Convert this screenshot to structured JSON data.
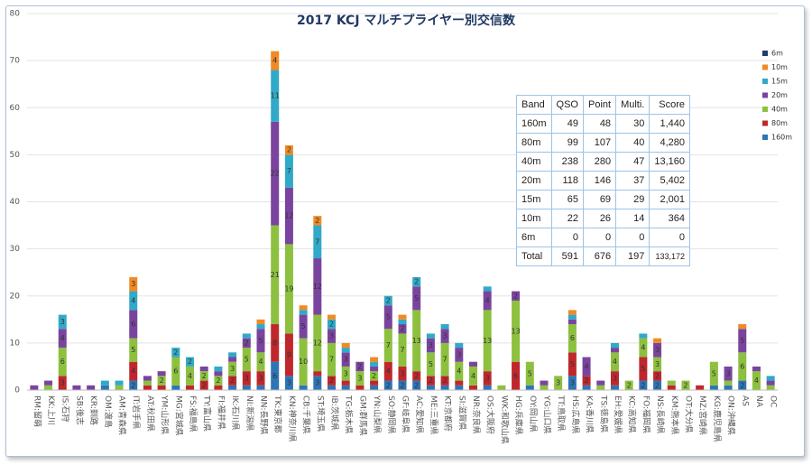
{
  "chart_data": {
    "type": "bar",
    "stacked": true,
    "title": "2017 KCJ マルチプライヤー別交信数",
    "categories": [
      "RM:留萌",
      "KK:上川",
      "IS:石狩",
      "SB:後志",
      "KR:釧路",
      "OM:渡島",
      "AM:青森県",
      "IT:岩手県",
      "AT:秋田県",
      "YM:山形県",
      "MG:宮城県",
      "FS:福島県",
      "TY:富山県",
      "FI:福井県",
      "IK:石川県",
      "NI:新潟県",
      "NN:長野県",
      "TK:東京都",
      "KN:神奈川県",
      "CB:千葉県",
      "ST:埼玉県",
      "IB:茨城県",
      "TG:栃木県",
      "GM:群馬県",
      "YN:山梨県",
      "SO:静岡県",
      "GF:岐阜県",
      "AC:愛知県",
      "ME:三重県",
      "KT:京都府",
      "SI:滋賀県",
      "NR:奈良県",
      "OS:大阪府",
      "WK:和歌山県",
      "HG:兵庫県",
      "OY:岡山県",
      "YG:山口県",
      "TT:鳥取県",
      "HS:広島県",
      "KA:香川県",
      "TS:徳島県",
      "EH:愛媛県",
      "KC:高知県",
      "FO:福岡県",
      "NS:長崎県",
      "KM:熊本県",
      "OT:大分県",
      "MZ:宮崎県",
      "KG:鹿児島県",
      "ON:沖縄県",
      "AS",
      "NA",
      "OC"
    ],
    "series": [
      {
        "name": "160m",
        "color": "#2e75b6",
        "values": [
          0,
          0,
          0,
          0,
          0,
          1,
          0,
          2,
          0,
          0,
          1,
          0,
          0,
          0,
          1,
          1,
          1,
          6,
          3,
          1,
          3,
          1,
          1,
          0,
          1,
          2,
          2,
          2,
          1,
          1,
          1,
          0,
          1,
          0,
          0,
          1,
          0,
          0,
          3,
          1,
          0,
          1,
          0,
          2,
          2,
          0,
          0,
          0,
          1,
          1,
          2,
          0,
          0
        ]
      },
      {
        "name": "80m",
        "color": "#c0272d",
        "values": [
          0,
          0,
          3,
          0,
          0,
          0,
          0,
          4,
          1,
          1,
          0,
          1,
          2,
          1,
          2,
          3,
          3,
          8,
          9,
          0,
          1,
          2,
          1,
          1,
          1,
          4,
          3,
          2,
          2,
          2,
          1,
          1,
          3,
          0,
          6,
          0,
          0,
          0,
          5,
          2,
          0,
          3,
          0,
          5,
          2,
          1,
          0,
          1,
          0,
          0,
          0,
          0,
          0
        ]
      },
      {
        "name": "40m",
        "color": "#8dc03f",
        "values": [
          0,
          1,
          6,
          0,
          0,
          0,
          1,
          5,
          1,
          2,
          6,
          4,
          2,
          2,
          3,
          5,
          4,
          21,
          19,
          10,
          12,
          7,
          3,
          3,
          2,
          7,
          7,
          13,
          5,
          7,
          4,
          4,
          13,
          1,
          13,
          5,
          1,
          3,
          6,
          0,
          1,
          4,
          2,
          4,
          3,
          1,
          2,
          0,
          5,
          1,
          6,
          4,
          1
        ]
      },
      {
        "name": "20m",
        "color": "#7a449e",
        "values": [
          1,
          1,
          4,
          1,
          1,
          0,
          0,
          6,
          1,
          1,
          0,
          0,
          1,
          1,
          1,
          2,
          5,
          22,
          12,
          5,
          12,
          3,
          3,
          2,
          1,
          5,
          2,
          5,
          3,
          3,
          3,
          1,
          4,
          0,
          2,
          0,
          1,
          0,
          1,
          4,
          1,
          1,
          0,
          0,
          3,
          0,
          0,
          0,
          0,
          3,
          5,
          1,
          1
        ]
      },
      {
        "name": "15m",
        "color": "#31a9c8",
        "values": [
          0,
          0,
          3,
          0,
          0,
          1,
          1,
          4,
          0,
          0,
          2,
          2,
          0,
          1,
          1,
          1,
          1,
          11,
          7,
          1,
          7,
          2,
          1,
          0,
          1,
          2,
          1,
          2,
          1,
          1,
          1,
          0,
          1,
          0,
          0,
          0,
          0,
          0,
          1,
          0,
          0,
          1,
          0,
          1,
          0,
          0,
          0,
          0,
          0,
          0,
          0,
          0,
          1
        ]
      },
      {
        "name": "10m",
        "color": "#f08a24",
        "values": [
          0,
          0,
          0,
          0,
          0,
          0,
          0,
          3,
          0,
          0,
          0,
          0,
          0,
          0,
          0,
          0,
          1,
          4,
          2,
          1,
          2,
          1,
          1,
          0,
          1,
          0,
          1,
          0,
          0,
          0,
          0,
          0,
          0,
          0,
          0,
          0,
          0,
          0,
          1,
          0,
          0,
          0,
          0,
          0,
          1,
          0,
          0,
          0,
          0,
          0,
          1,
          0,
          0
        ]
      },
      {
        "name": "6m",
        "color": "#1f3b73",
        "values": [
          0,
          0,
          0,
          0,
          0,
          0,
          0,
          0,
          0,
          0,
          0,
          0,
          0,
          0,
          0,
          0,
          0,
          0,
          0,
          0,
          0,
          0,
          0,
          0,
          0,
          0,
          0,
          0,
          0,
          0,
          0,
          0,
          0,
          0,
          0,
          0,
          0,
          0,
          0,
          0,
          0,
          0,
          0,
          0,
          0,
          0,
          0,
          0,
          0,
          0,
          0,
          0,
          0
        ]
      }
    ],
    "ylim": [
      0,
      80
    ],
    "yticks": [
      0,
      10,
      20,
      30,
      40,
      50,
      60,
      70,
      80
    ],
    "grid": true,
    "legend": "right"
  },
  "table": {
    "header": [
      "Band",
      "QSO",
      "Point",
      "Multi.",
      "Score"
    ],
    "rows": [
      [
        "160m",
        "49",
        "48",
        "30",
        "1,440"
      ],
      [
        "80m",
        "99",
        "107",
        "40",
        "4,280"
      ],
      [
        "40m",
        "238",
        "280",
        "47",
        "13,160"
      ],
      [
        "20m",
        "118",
        "146",
        "37",
        "5,402"
      ],
      [
        "15m",
        "65",
        "69",
        "29",
        "2,001"
      ],
      [
        "10m",
        "22",
        "26",
        "14",
        "364"
      ],
      [
        "6m",
        "0",
        "0",
        "0",
        "0"
      ]
    ],
    "total": [
      "Total",
      "591",
      "676",
      "197",
      "133,172"
    ]
  }
}
